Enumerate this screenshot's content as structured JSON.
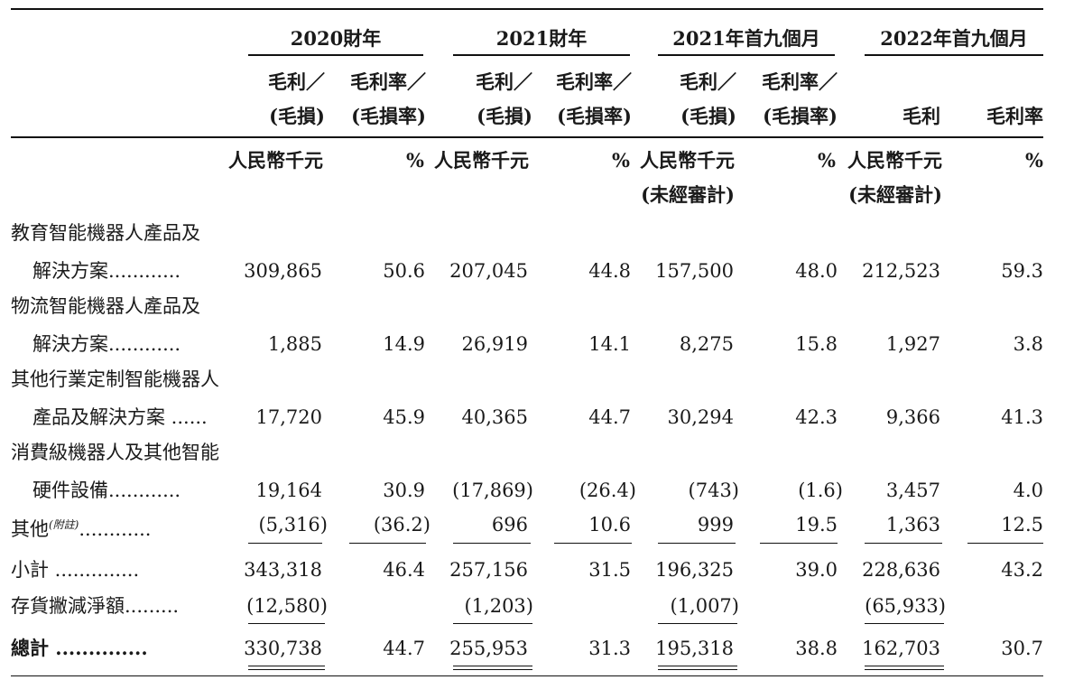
{
  "periods": [
    "2020財年",
    "2021財年",
    "2021年首九個月",
    "2022年首九個月"
  ],
  "col_headers": {
    "gp_l1": "毛利／",
    "gp_l2": "(毛損)",
    "gpm_l1": "毛利率／",
    "gpm_l2": "(毛損率)",
    "gp_2022": "毛利",
    "gpm_2022": "毛利率"
  },
  "units": {
    "rmb": "人民幣千元",
    "pct": "%",
    "unaudited": "(未經審計)"
  },
  "rows": [
    {
      "line1": "教育智能機器人產品及",
      "line2": "解決方案............",
      "values": [
        "309,865",
        "50.6",
        "207,045",
        "44.8",
        "157,500",
        "48.0",
        "212,523",
        "59.3"
      ]
    },
    {
      "line1": "物流智能機器人產品及",
      "line2": "解決方案............",
      "values": [
        "1,885",
        "14.9",
        "26,919",
        "14.1",
        "8,275",
        "15.8",
        "1,927",
        "3.8"
      ]
    },
    {
      "line1": "其他行業定制智能機器人",
      "line2": "產品及解決方案 ......",
      "values": [
        "17,720",
        "45.9",
        "40,365",
        "44.7",
        "30,294",
        "42.3",
        "9,366",
        "41.3"
      ]
    },
    {
      "line1": "消費級機器人及其他智能",
      "line2": "硬件設備............",
      "values": [
        "19,164",
        "30.9",
        "(17,869)",
        "(26.4)",
        "(743)",
        "(1.6)",
        "3,457",
        "4.0"
      ]
    },
    {
      "line1": "其他",
      "note": "(附註)",
      "line2": "............",
      "values": [
        "(5,316)",
        "(36.2)",
        "696",
        "10.6",
        "999",
        "19.5",
        "1,363",
        "12.5"
      ]
    }
  ],
  "subtotal": {
    "label": "小計 ..............",
    "values": [
      "343,318",
      "46.4",
      "257,156",
      "31.5",
      "196,325",
      "39.0",
      "228,636",
      "43.2"
    ]
  },
  "impairment": {
    "label": "存貨撇減淨額.........",
    "values": [
      "(12,580)",
      "",
      "(1,203)",
      "",
      "(1,007)",
      "",
      "(65,933)",
      ""
    ]
  },
  "total": {
    "label": "總計 ..............",
    "values": [
      "330,738",
      "44.7",
      "255,953",
      "31.3",
      "195,318",
      "38.8",
      "162,703",
      "30.7"
    ]
  }
}
